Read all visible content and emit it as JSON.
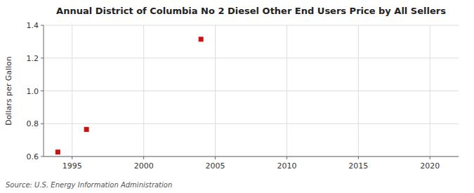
{
  "chart_data": {
    "type": "scatter",
    "title": "Annual District of Columbia No 2 Diesel Other End Users Price by All Sellers",
    "ylabel": "Dollars per Gallon",
    "source": "Source: U.S. Energy Information Administration",
    "x": [
      1994,
      1996,
      2004
    ],
    "values": [
      0.627,
      0.765,
      1.315
    ],
    "color": "#cc1111",
    "marker": "square",
    "xlim": [
      1993,
      2022
    ],
    "ylim": [
      0.6,
      1.4
    ],
    "xticks": [
      1995,
      2000,
      2005,
      2010,
      2015,
      2020
    ],
    "yticks": [
      0.6,
      0.8,
      {
        "value": 1.0,
        "label": "1.0"
      },
      1.2,
      1.4
    ],
    "grid": true
  }
}
